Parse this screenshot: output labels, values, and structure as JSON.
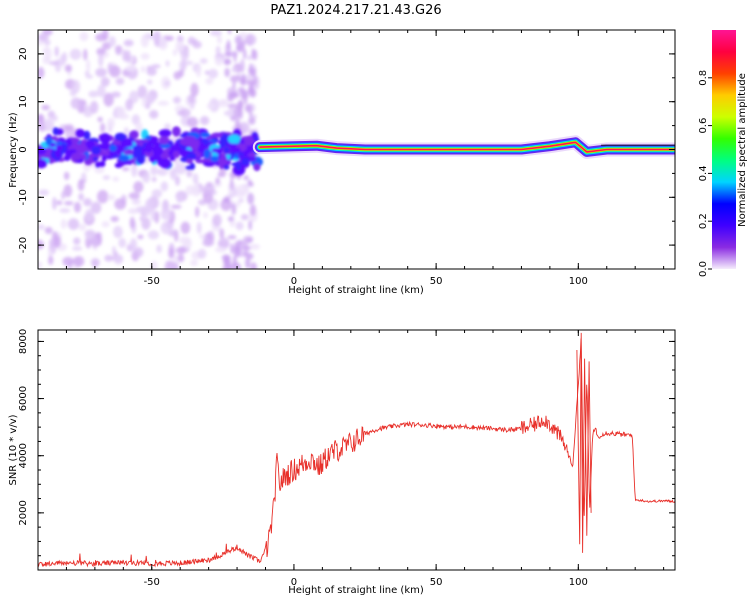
{
  "title": "PAZ1.2024.217.21.43.G26",
  "chart_data": [
    {
      "type": "heatmap",
      "xlabel": "Height of straight line (km)",
      "ylabel": "Frequency (Hz)",
      "xlim": [
        -90,
        134
      ],
      "ylim": [
        -25,
        25
      ],
      "xticks": [
        -50,
        0,
        50,
        100
      ],
      "yticks": [
        -20,
        -10,
        0,
        10,
        20
      ],
      "colorbar": {
        "label": "Normalized spectral amplitude",
        "range": [
          0,
          1
        ],
        "ticks": [
          0.0,
          0.2,
          0.4,
          0.6,
          0.8
        ],
        "colormap": [
          "#f5ecfc",
          "#8a2be2",
          "#3f00ff",
          "#0000ff",
          "#00d4ff",
          "#00ff80",
          "#33ff00",
          "#ccff00",
          "#ffcc00",
          "#ff4000",
          "#ff0040",
          "#ff1493"
        ]
      },
      "description_regions": [
        {
          "x_range": [
            -90,
            -13
          ],
          "pattern": "scattered noise, weak purple/blue blobs near 0 Hz"
        },
        {
          "x_range": [
            -13,
            134
          ],
          "pattern": "coherent carrier line at 0 Hz, amplitude ~0.8-1.0"
        }
      ],
      "carrier_line": [
        {
          "x": -12,
          "y": 0.5
        },
        {
          "x": 0,
          "y": 0.7
        },
        {
          "x": 8,
          "y": 0.8
        },
        {
          "x": 15,
          "y": 0.3
        },
        {
          "x": 25,
          "y": 0.0
        },
        {
          "x": 50,
          "y": 0.0
        },
        {
          "x": 80,
          "y": 0.0
        },
        {
          "x": 90,
          "y": 0.7
        },
        {
          "x": 99,
          "y": 1.5
        },
        {
          "x": 103,
          "y": -0.5
        },
        {
          "x": 110,
          "y": 0.0
        },
        {
          "x": 134,
          "y": 0.0
        }
      ]
    },
    {
      "type": "line",
      "xlabel": "Height of straight line (km)",
      "ylabel": "SNR (10 * v/v)",
      "xlim": [
        -90,
        134
      ],
      "ylim": [
        0,
        8400
      ],
      "xticks": [
        -50,
        0,
        50,
        100
      ],
      "yticks": [
        2000,
        4000,
        6000,
        8000
      ],
      "color": "#e8302a",
      "series": [
        {
          "x": [
            -90,
            -80,
            -70,
            -60,
            -50,
            -40,
            -30,
            -25,
            -20,
            -16,
            -12,
            -9,
            -7,
            -6,
            -5,
            -3,
            0,
            3,
            6,
            9,
            12,
            15,
            18,
            21,
            24,
            27,
            30,
            33,
            36,
            40,
            45,
            50,
            55,
            60,
            65,
            70,
            75,
            80,
            85,
            88,
            91,
            94,
            96,
            98,
            100,
            101,
            102,
            103,
            104,
            105,
            106,
            107,
            108,
            110,
            115,
            119,
            120,
            121,
            125,
            130,
            134
          ],
          "y": [
            200,
            250,
            220,
            260,
            230,
            240,
            350,
            550,
            800,
            500,
            300,
            900,
            2200,
            3800,
            3000,
            3300,
            3500,
            3700,
            3900,
            3600,
            4000,
            4200,
            4300,
            4500,
            4700,
            4850,
            4950,
            5000,
            5050,
            5100,
            5080,
            5050,
            5000,
            5020,
            4980,
            4950,
            4900,
            4950,
            5100,
            5300,
            5000,
            4600,
            4200,
            3600,
            6500,
            8100,
            1500,
            6800,
            2000,
            4700,
            5000,
            4600,
            4750,
            4800,
            4750,
            4700,
            2450,
            2450,
            2400,
            2420,
            2400
          ]
        }
      ]
    }
  ]
}
